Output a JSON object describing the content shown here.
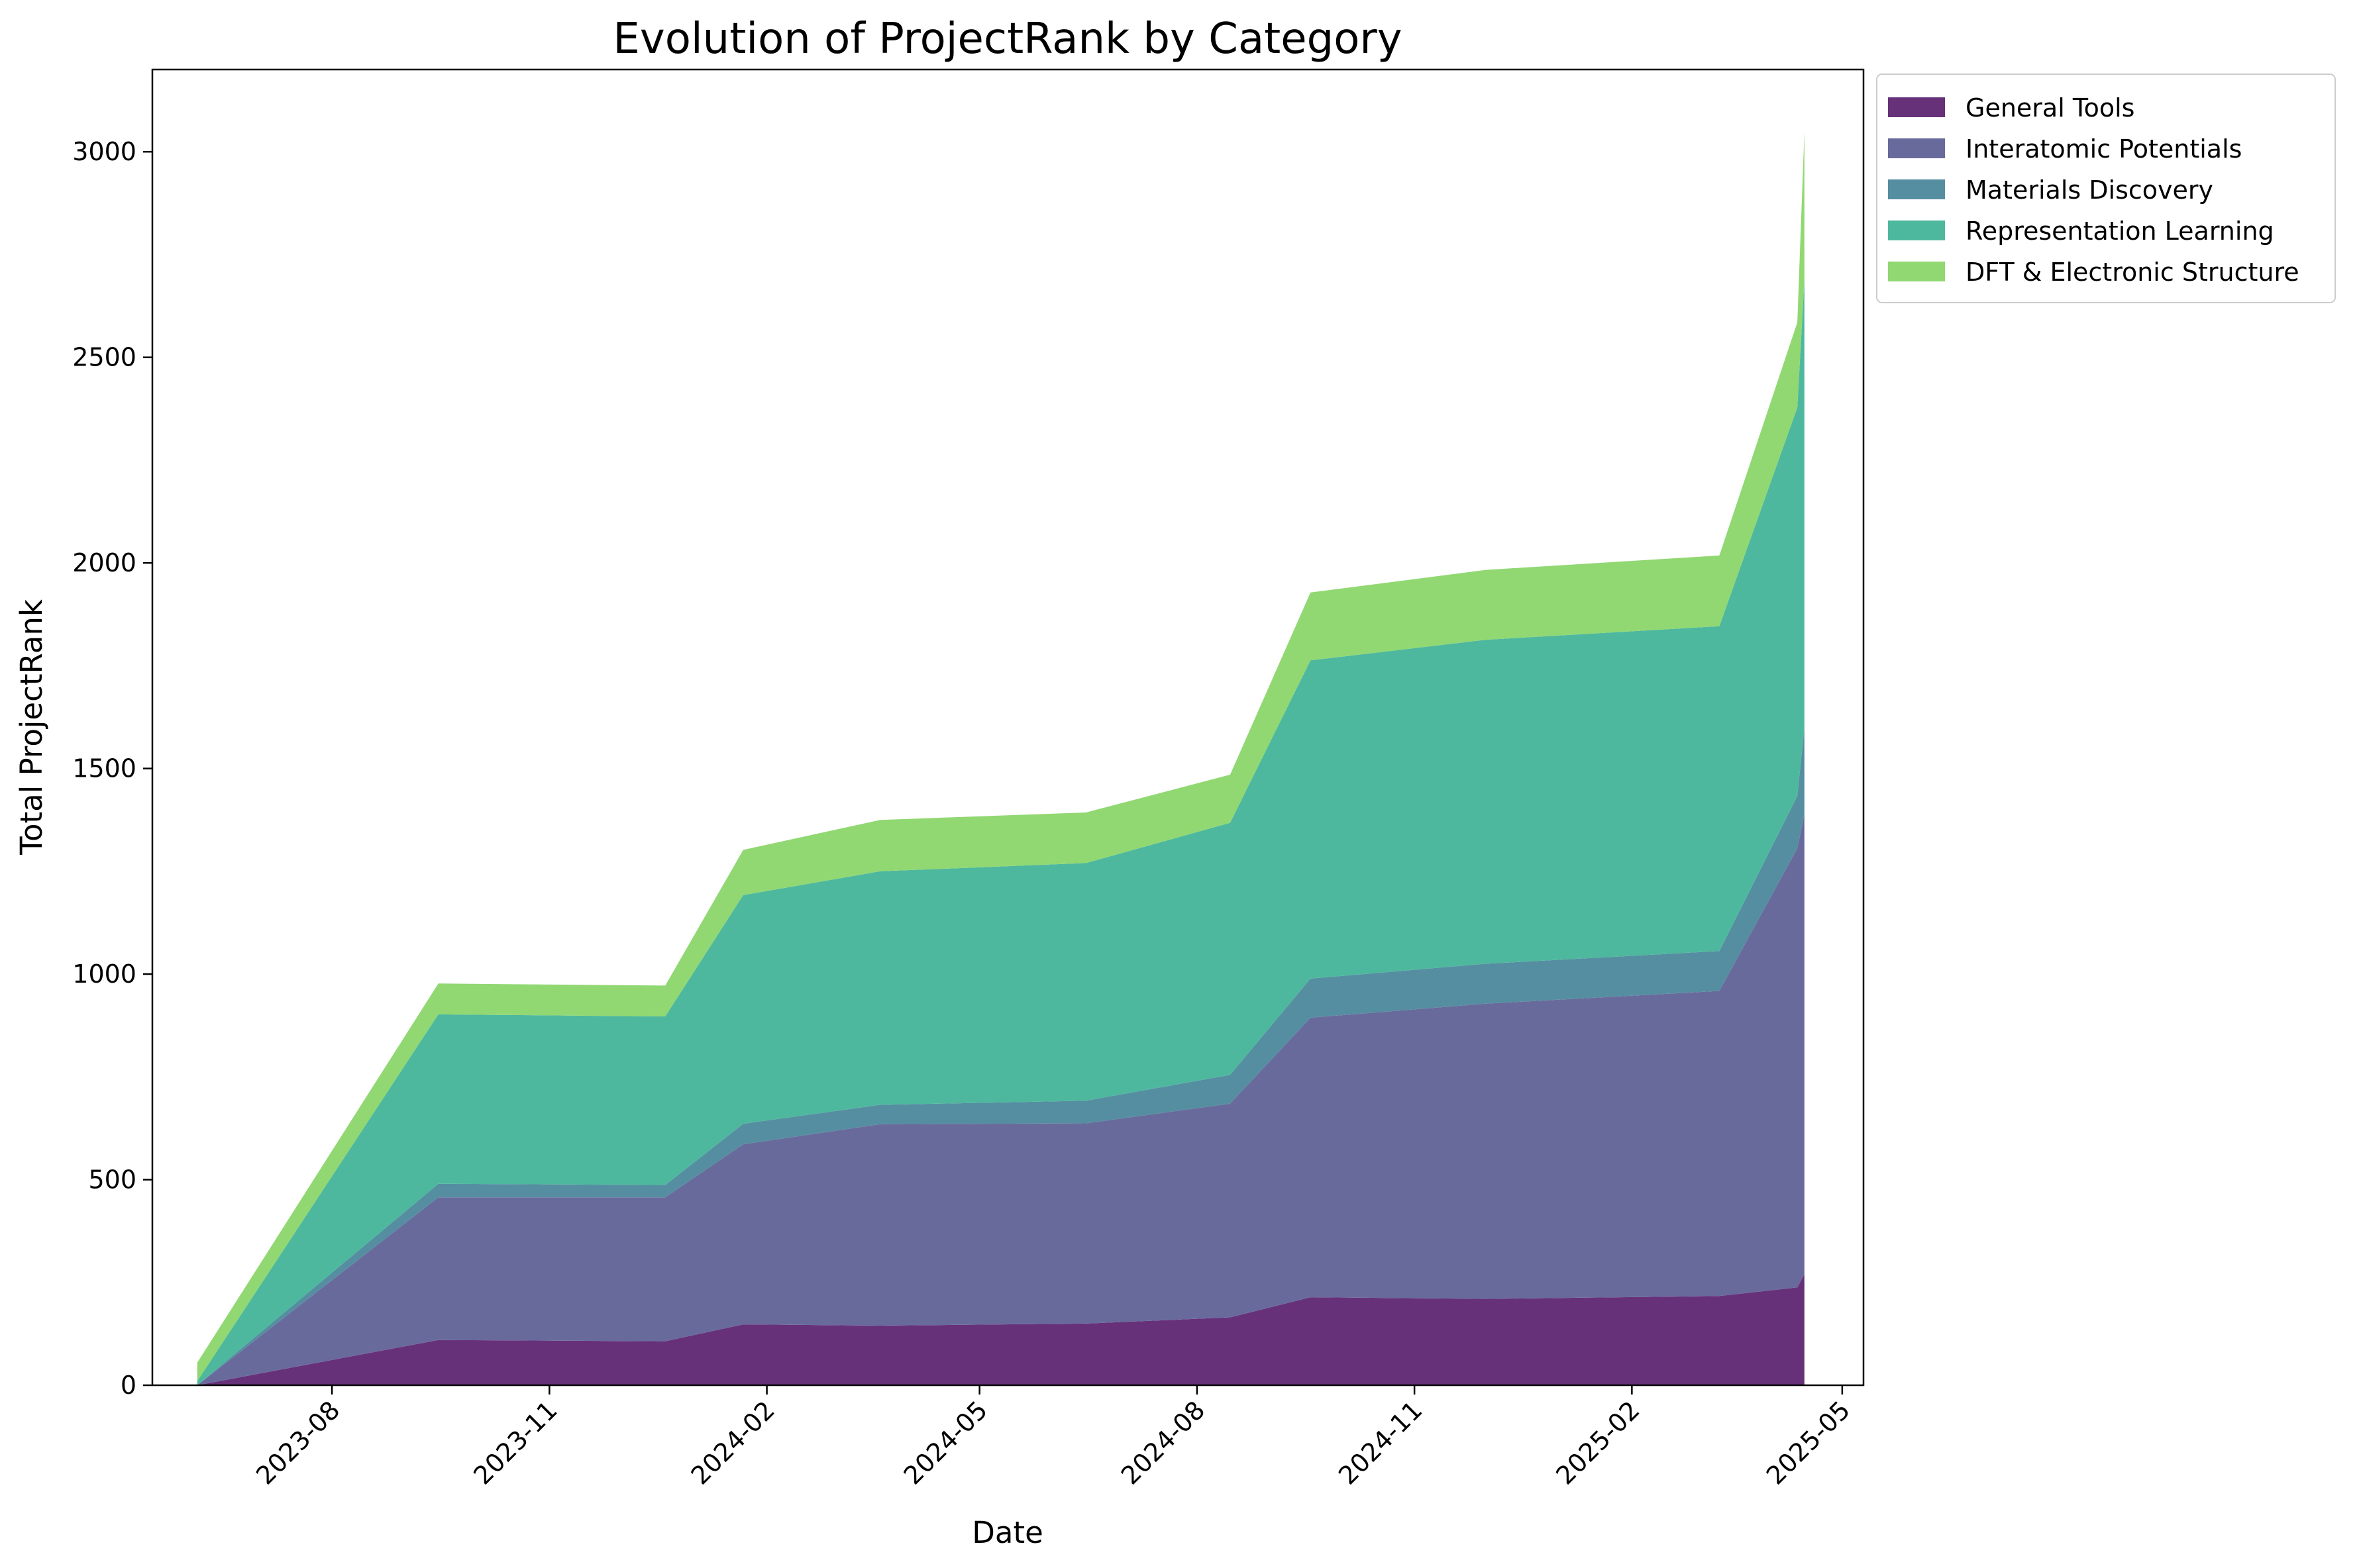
{
  "chart_data": {
    "type": "area",
    "stacked": true,
    "title": "Evolution of ProjectRank by Category",
    "xlabel": "Date",
    "ylabel": "Total ProjectRank",
    "x_axis_type": "date",
    "xlim": [
      "2023-05-17",
      "2025-05-10"
    ],
    "ylim": [
      0,
      3200
    ],
    "x_ticks": [
      {
        "date": "2023-08-01",
        "label": "2023-08"
      },
      {
        "date": "2023-11-01",
        "label": "2023-11"
      },
      {
        "date": "2024-02-01",
        "label": "2024-02"
      },
      {
        "date": "2024-05-01",
        "label": "2024-05"
      },
      {
        "date": "2024-08-01",
        "label": "2024-08"
      },
      {
        "date": "2024-11-01",
        "label": "2024-11"
      },
      {
        "date": "2025-02-01",
        "label": "2025-02"
      },
      {
        "date": "2025-05-01",
        "label": "2025-05"
      }
    ],
    "y_ticks": [
      0,
      500,
      1000,
      1500,
      2000,
      2500,
      3000
    ],
    "x_tick_rotation_deg": 45,
    "grid": false,
    "legend_position": "outside-top-right",
    "x": [
      "2023-06-05",
      "2023-09-15",
      "2023-12-20",
      "2024-01-22",
      "2024-03-20",
      "2024-06-15",
      "2024-08-15",
      "2024-09-18",
      "2024-12-01",
      "2025-03-10",
      "2025-04-12",
      "2025-04-15"
    ],
    "series": [
      {
        "name": "General Tools",
        "color": "#67317a",
        "values": [
          0,
          110,
          107,
          148,
          145,
          150,
          165,
          214,
          210,
          217,
          238,
          270
        ]
      },
      {
        "name": "Interatomic Potentials",
        "color": "#696a9c",
        "values": [
          0,
          347,
          350,
          438,
          490,
          487,
          520,
          680,
          718,
          742,
          1068,
          1120
        ]
      },
      {
        "name": "Materials Discovery",
        "color": "#568ea1",
        "values": [
          0,
          33,
          30,
          50,
          47,
          55,
          70,
          95,
          97,
          97,
          127,
          210
        ]
      },
      {
        "name": "Representation Learning",
        "color": "#4eb89e",
        "values": [
          10,
          412,
          410,
          556,
          568,
          578,
          613,
          774,
          788,
          790,
          945,
          1090
        ]
      },
      {
        "name": "DFT & Electronic Structure",
        "color": "#91d873",
        "values": [
          45,
          75,
          75,
          110,
          125,
          123,
          117,
          165,
          170,
          172,
          207,
          360
        ]
      }
    ]
  }
}
